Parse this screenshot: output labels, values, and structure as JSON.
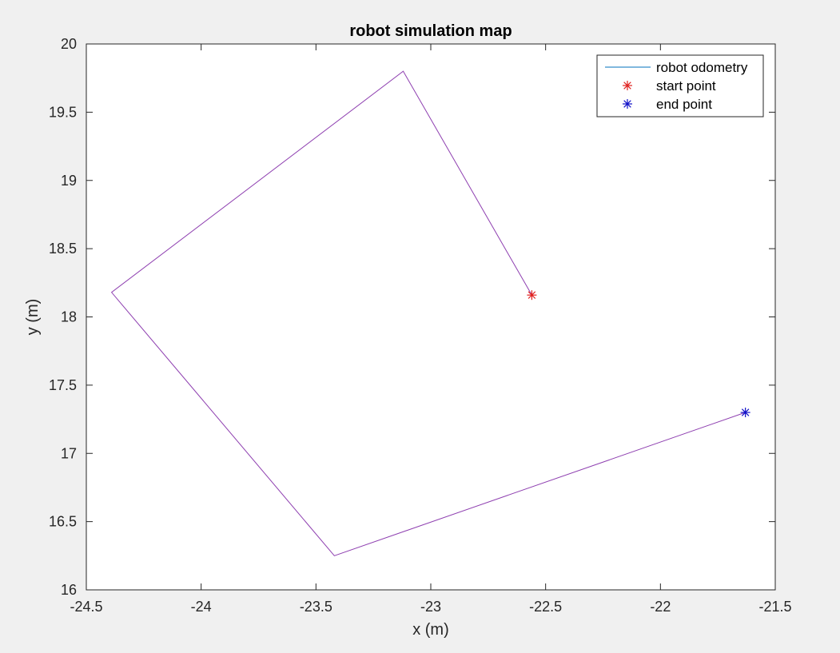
{
  "chart_data": {
    "type": "line",
    "title": "robot simulation map",
    "xlabel": "x (m)",
    "ylabel": "y (m)",
    "xlim": [
      -24.5,
      -21.5
    ],
    "ylim": [
      16,
      20
    ],
    "xticks": [
      -24.5,
      -24,
      -23.5,
      -23,
      -22.5,
      -22,
      -21.5
    ],
    "yticks": [
      16,
      16.5,
      17,
      17.5,
      18,
      18.5,
      19,
      19.5,
      20
    ],
    "xtick_labels": [
      "-24.5",
      "-24",
      "-23.5",
      "-23",
      "-22.5",
      "-22",
      "-21.5"
    ],
    "ytick_labels": [
      "16",
      "16.5",
      "17",
      "17.5",
      "18",
      "18.5",
      "19",
      "19.5",
      "20"
    ],
    "grid": false,
    "legend_position": "top-right",
    "legend": [
      {
        "label": "robot odometry",
        "marker": "line",
        "color": "#0072bd"
      },
      {
        "label": "start point",
        "marker": "asterisk",
        "color": "#e0201e"
      },
      {
        "label": "end point",
        "marker": "asterisk",
        "color": "#1010c8"
      }
    ],
    "series": [
      {
        "name": "robot odometry",
        "color": "#8e3fb0",
        "x": [
          -22.56,
          -23.12,
          -24.39,
          -23.42,
          -21.63
        ],
        "y": [
          18.16,
          19.8,
          18.18,
          16.25,
          17.3
        ]
      }
    ],
    "markers": [
      {
        "name": "start point",
        "x": -22.56,
        "y": 18.16,
        "color": "#e0201e"
      },
      {
        "name": "end point",
        "x": -21.63,
        "y": 17.3,
        "color": "#1010c8"
      }
    ]
  }
}
